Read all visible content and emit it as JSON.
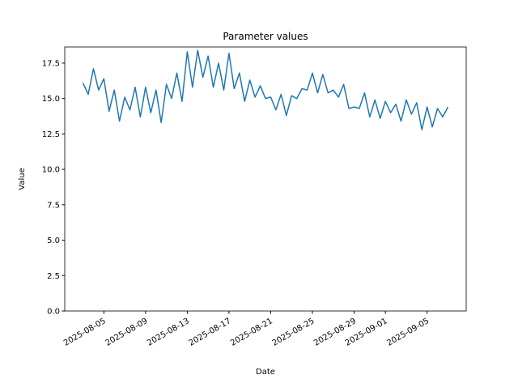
{
  "chart_data": {
    "type": "line",
    "title": "Parameter values",
    "xlabel": "Date",
    "ylabel": "Value",
    "x": [
      "2025-08-03T00:00",
      "2025-08-03T12:00",
      "2025-08-04T00:00",
      "2025-08-04T12:00",
      "2025-08-05T00:00",
      "2025-08-05T12:00",
      "2025-08-06T00:00",
      "2025-08-06T12:00",
      "2025-08-07T00:00",
      "2025-08-07T12:00",
      "2025-08-08T00:00",
      "2025-08-08T12:00",
      "2025-08-09T00:00",
      "2025-08-09T12:00",
      "2025-08-10T00:00",
      "2025-08-10T12:00",
      "2025-08-11T00:00",
      "2025-08-11T12:00",
      "2025-08-12T00:00",
      "2025-08-12T12:00",
      "2025-08-13T00:00",
      "2025-08-13T12:00",
      "2025-08-14T00:00",
      "2025-08-14T12:00",
      "2025-08-15T00:00",
      "2025-08-15T12:00",
      "2025-08-16T00:00",
      "2025-08-16T12:00",
      "2025-08-17T00:00",
      "2025-08-17T12:00",
      "2025-08-18T00:00",
      "2025-08-18T12:00",
      "2025-08-19T00:00",
      "2025-08-19T12:00",
      "2025-08-20T00:00",
      "2025-08-20T12:00",
      "2025-08-21T00:00",
      "2025-08-21T12:00",
      "2025-08-22T00:00",
      "2025-08-22T12:00",
      "2025-08-23T00:00",
      "2025-08-23T12:00",
      "2025-08-24T00:00",
      "2025-08-24T12:00",
      "2025-08-25T00:00",
      "2025-08-25T12:00",
      "2025-08-26T00:00",
      "2025-08-26T12:00",
      "2025-08-27T00:00",
      "2025-08-27T12:00",
      "2025-08-28T00:00",
      "2025-08-28T12:00",
      "2025-08-29T00:00",
      "2025-08-29T12:00",
      "2025-08-30T00:00",
      "2025-08-30T12:00",
      "2025-08-31T00:00",
      "2025-08-31T12:00",
      "2025-09-01T00:00",
      "2025-09-01T12:00",
      "2025-09-02T00:00",
      "2025-09-02T12:00",
      "2025-09-03T00:00",
      "2025-09-03T12:00",
      "2025-09-04T00:00",
      "2025-09-04T12:00",
      "2025-09-05T00:00",
      "2025-09-05T12:00",
      "2025-09-06T00:00",
      "2025-09-06T12:00",
      "2025-09-07T00:00"
    ],
    "series": [
      {
        "name": "Value",
        "color": "#1f77b4",
        "values": [
          16.1,
          15.3,
          17.1,
          15.6,
          16.4,
          14.1,
          15.6,
          13.4,
          15.1,
          14.2,
          15.8,
          13.7,
          15.8,
          14.0,
          15.6,
          13.3,
          16.0,
          15.0,
          16.8,
          14.8,
          18.3,
          15.8,
          18.4,
          16.5,
          18.0,
          15.8,
          17.5,
          15.6,
          18.2,
          15.7,
          16.8,
          14.8,
          16.3,
          15.1,
          15.9,
          15.0,
          15.1,
          14.2,
          15.3,
          13.8,
          15.2,
          15.0,
          15.7,
          15.6,
          16.8,
          15.4,
          16.7,
          15.4,
          15.6,
          15.1,
          16.0,
          14.3,
          14.4,
          14.3,
          15.4,
          13.7,
          14.9,
          13.6,
          14.8,
          14.0,
          14.6,
          13.4,
          14.9,
          13.9,
          14.7,
          12.8,
          14.4,
          13.0,
          14.3,
          13.7,
          14.4
        ]
      }
    ],
    "xlim": [
      "2025-08-01T06:00",
      "2025-09-08T18:00"
    ],
    "xticks": [
      "2025-08-05",
      "2025-08-09",
      "2025-08-13",
      "2025-08-17",
      "2025-08-21",
      "2025-08-25",
      "2025-08-29",
      "2025-09-01",
      "2025-09-05"
    ],
    "ylim": [
      0,
      18.64
    ],
    "yticks": [
      {
        "value": 0,
        "label": "0.0"
      },
      {
        "value": 2.5,
        "label": "2.5"
      },
      {
        "value": 5,
        "label": "5.0"
      },
      {
        "value": 7.5,
        "label": "7.5"
      },
      {
        "value": 10,
        "label": "10.0"
      },
      {
        "value": 12.5,
        "label": "12.5"
      },
      {
        "value": 15,
        "label": "15.0"
      },
      {
        "value": 17.5,
        "label": "17.5"
      }
    ],
    "grid": false
  }
}
